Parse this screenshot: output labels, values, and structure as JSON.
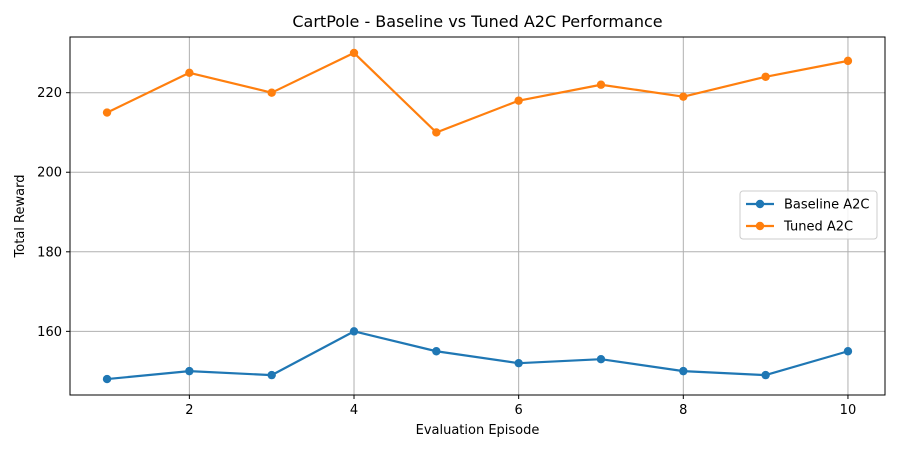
{
  "chart_data": {
    "type": "line",
    "title": "CartPole - Baseline vs Tuned A2C Performance",
    "xlabel": "Evaluation Episode",
    "ylabel": "Total Reward",
    "x": [
      1,
      2,
      3,
      4,
      5,
      6,
      7,
      8,
      9,
      10
    ],
    "xlim": [
      0.55,
      10.45
    ],
    "ylim": [
      144,
      234
    ],
    "xticks": [
      2,
      4,
      6,
      8,
      10
    ],
    "yticks": [
      160,
      180,
      200,
      220
    ],
    "grid": true,
    "legend_position": "center-right",
    "series": [
      {
        "name": "Baseline A2C",
        "color": "#1f77b4",
        "values": [
          148,
          150,
          149,
          160,
          155,
          152,
          153,
          150,
          149,
          155
        ]
      },
      {
        "name": "Tuned A2C",
        "color": "#ff7f0e",
        "values": [
          215,
          225,
          220,
          230,
          210,
          218,
          222,
          219,
          224,
          228
        ]
      }
    ]
  }
}
